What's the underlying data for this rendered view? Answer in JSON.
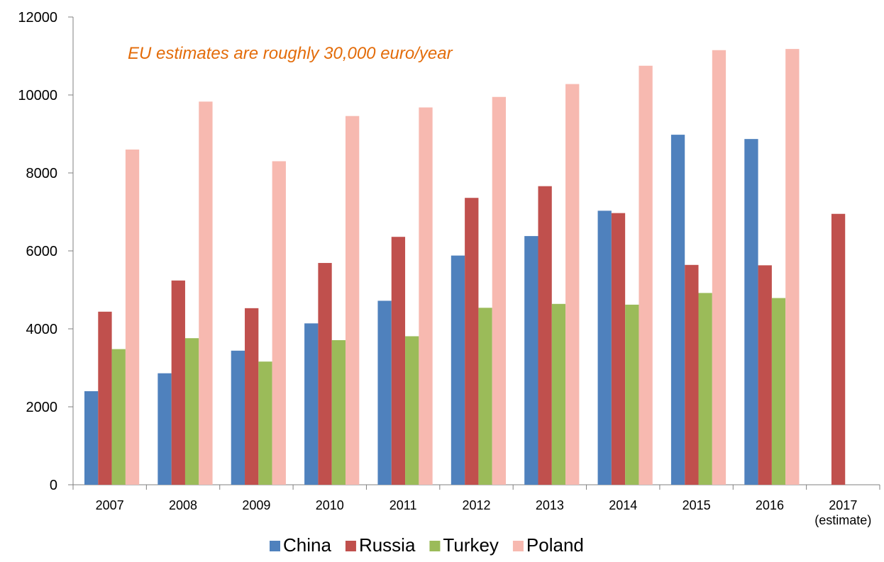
{
  "chart_data": {
    "type": "bar",
    "title": "",
    "xlabel": "",
    "ylabel": "",
    "categories": [
      [
        "2007"
      ],
      [
        "2008"
      ],
      [
        "2009"
      ],
      [
        "2010"
      ],
      [
        "2011"
      ],
      [
        "2012"
      ],
      [
        "2013"
      ],
      [
        "2014"
      ],
      [
        "2015"
      ],
      [
        "2016"
      ],
      [
        "2017",
        "(estimate)"
      ]
    ],
    "ylim": [
      0,
      12000
    ],
    "yticks": [
      0,
      2000,
      4000,
      6000,
      8000,
      10000,
      12000
    ],
    "ytick_labels": [
      "0",
      "2000",
      "4000",
      "6000",
      "8000",
      "10000",
      "12000"
    ],
    "grid": false,
    "legend_position": "bottom",
    "series": [
      {
        "name": "China",
        "color": "#4F81BD",
        "values": [
          2400,
          2860,
          3440,
          4140,
          4720,
          5880,
          6380,
          7030,
          8980,
          8870,
          null
        ]
      },
      {
        "name": "Russia",
        "color": "#C0504D",
        "values": [
          4440,
          5240,
          4530,
          5690,
          6360,
          7360,
          7660,
          6970,
          5640,
          5630,
          6950
        ]
      },
      {
        "name": "Turkey",
        "color": "#9BBB59",
        "values": [
          3480,
          3760,
          3160,
          3710,
          3810,
          4540,
          4640,
          4620,
          4920,
          4790,
          null
        ]
      },
      {
        "name": "Poland",
        "color": "#F7B9B0",
        "values": [
          8600,
          9830,
          8300,
          9460,
          9680,
          9950,
          10280,
          10750,
          11150,
          11180,
          null
        ]
      }
    ],
    "annotations": [
      {
        "text": "EU estimates are roughly 30,000 euro/year",
        "color": "#E36C0A"
      }
    ]
  }
}
